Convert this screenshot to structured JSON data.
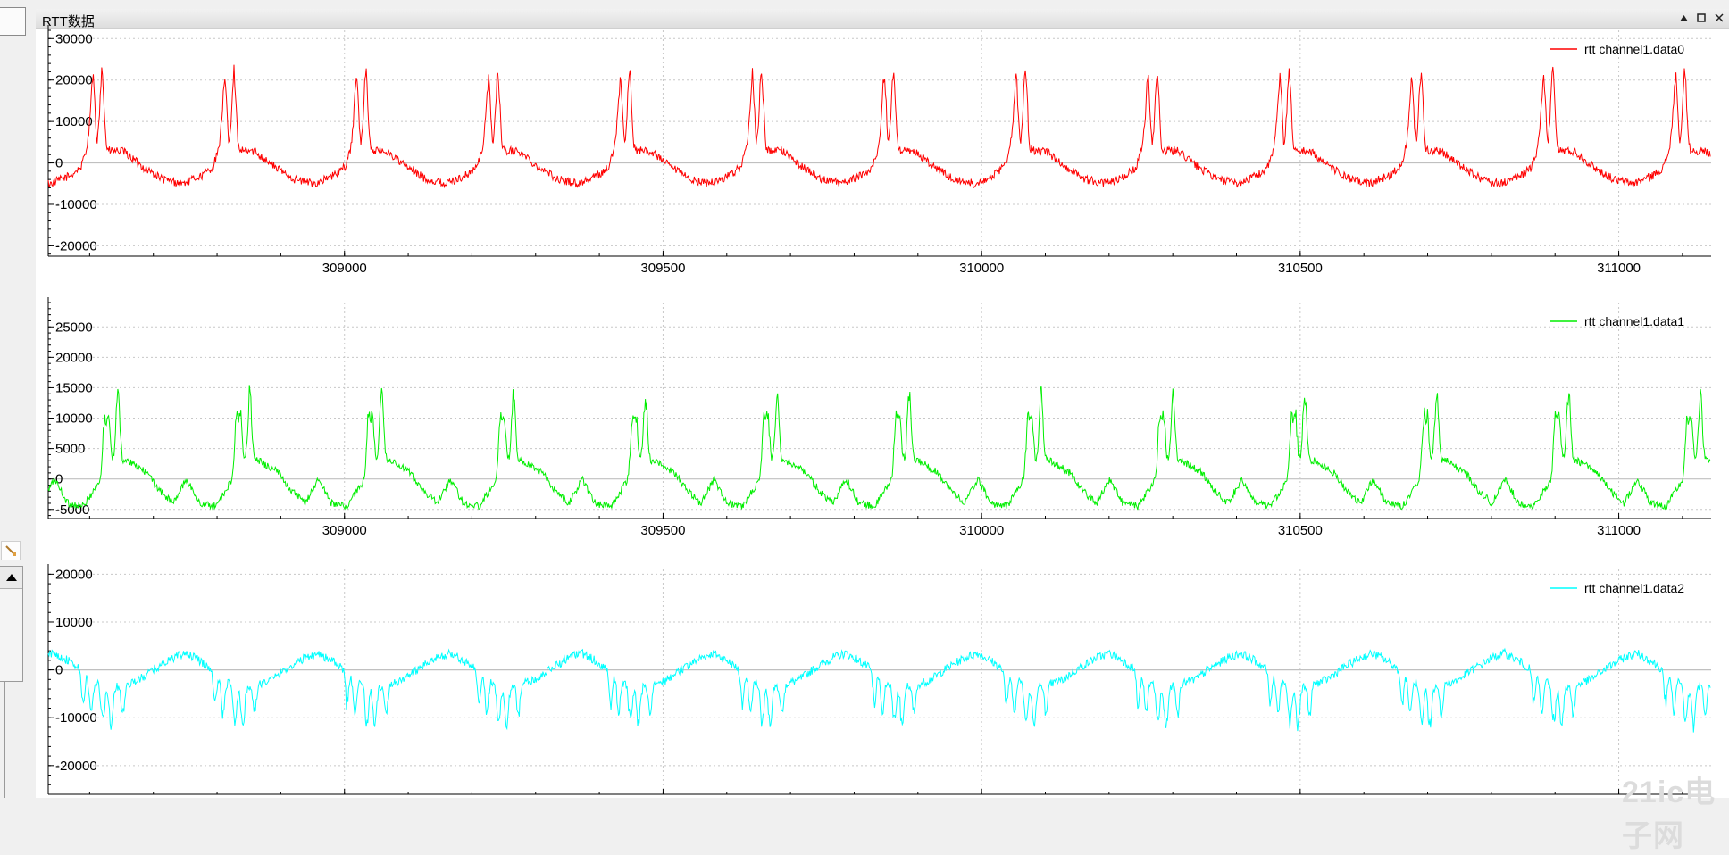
{
  "window": {
    "title": "RTT数据"
  },
  "watermark": "21ic电子网",
  "icons": {
    "restore": "restore-icon",
    "maximize": "maximize-icon",
    "close": "close-icon",
    "brush": "brush-icon",
    "scroll_up": "arrow-up-icon"
  },
  "colors": {
    "ch0": "#ff0000",
    "ch1": "#00ee00",
    "ch2": "#00ffff",
    "grid": "#c8c8c8",
    "zero": "#c0c0c0"
  },
  "chart_data": [
    {
      "type": "line",
      "title": "",
      "legend": "rtt channel1.data0",
      "legend_position": "top-right",
      "xlim": [
        308535,
        311145
      ],
      "ylim": [
        -22500,
        32000
      ],
      "x_ticks": [
        309000,
        309500,
        310000,
        310500,
        311000
      ],
      "x_tick_labels": [
        "309000",
        "309500",
        "310000",
        "310500",
        "311000"
      ],
      "y_ticks": [
        30000,
        20000,
        10000,
        0,
        -10000,
        -20000
      ],
      "y_tick_labels": [
        "30000",
        "20000",
        "10000",
        "0",
        "-10000",
        "-20000"
      ],
      "series": [
        {
          "name": "rtt channel1.data0",
          "period": 207,
          "phase_x": 308570,
          "shape": [
            [
              0,
              -3000
            ],
            [
              0.08,
              -1000
            ],
            [
              0.12,
              3000
            ],
            [
              0.17,
              11500
            ],
            [
              0.2,
              2500
            ],
            [
              0.24,
              12500
            ],
            [
              0.27,
              3000
            ],
            [
              0.4,
              2800
            ],
            [
              0.55,
              -1000
            ],
            [
              0.7,
              -4000
            ],
            [
              0.85,
              -5000
            ],
            [
              1.0,
              -3000
            ]
          ],
          "spikes": [
            {
              "at": 0.17,
              "width": 0.016,
              "height": 9500
            },
            {
              "at": 0.24,
              "width": 0.016,
              "height": 10000
            }
          ],
          "noise": 1000
        }
      ]
    },
    {
      "type": "line",
      "title": "",
      "legend": "rtt channel1.data1",
      "legend_position": "top-right",
      "xlim": [
        308535,
        311145
      ],
      "ylim": [
        -6500,
        29000
      ],
      "x_ticks": [
        309000,
        309500,
        310000,
        310500,
        311000
      ],
      "x_tick_labels": [
        "309000",
        "309500",
        "310000",
        "310500",
        "311000"
      ],
      "y_ticks": [
        25000,
        20000,
        15000,
        10000,
        5000,
        0,
        -5000
      ],
      "y_tick_labels": [
        "25000",
        "20000",
        "15000",
        "10000",
        "5000",
        "0",
        "-5000"
      ],
      "series": [
        {
          "name": "rtt channel1.data1",
          "period": 207,
          "phase_x": 308545,
          "shape": [
            [
              0,
              0
            ],
            [
              0.1,
              -4000
            ],
            [
              0.22,
              -4500
            ],
            [
              0.32,
              -1000
            ],
            [
              0.4,
              1500
            ],
            [
              0.44,
              3000
            ],
            [
              0.55,
              3000
            ],
            [
              0.7,
              1000
            ],
            [
              0.8,
              -2000
            ],
            [
              0.9,
              -4000
            ],
            [
              1.0,
              0
            ]
          ],
          "spikes": [
            {
              "at": 0.38,
              "width": 0.014,
              "height": 9000
            },
            {
              "at": 0.41,
              "width": 0.012,
              "height": 7500
            },
            {
              "at": 0.48,
              "width": 0.014,
              "height": 11000
            }
          ],
          "noise": 600
        }
      ]
    },
    {
      "type": "line",
      "title": "",
      "legend": "rtt channel1.data2",
      "legend_position": "top-right",
      "xlim": [
        308535,
        311145
      ],
      "ylim": [
        -26000,
        21000
      ],
      "x_ticks": [
        309000,
        309500,
        310000,
        310500,
        311000
      ],
      "x_tick_labels": [
        "309000",
        "309500",
        "310000",
        "310500",
        "311000"
      ],
      "y_ticks": [
        20000,
        10000,
        0,
        -10000,
        -20000
      ],
      "y_tick_labels": [
        "20000",
        "10000",
        "0",
        "-10000",
        "-20000"
      ],
      "series": [
        {
          "name": "rtt channel1.data2",
          "period": 207,
          "phase_x": 308565,
          "shape": [
            [
              0,
              2000
            ],
            [
              0.1,
              0
            ],
            [
              0.2,
              -2500
            ],
            [
              0.4,
              -3500
            ],
            [
              0.55,
              -2000
            ],
            [
              0.65,
              0
            ],
            [
              0.8,
              2500
            ],
            [
              0.9,
              3500
            ],
            [
              1.0,
              2000
            ]
          ],
          "spikes": [
            {
              "at": 0.12,
              "width": 0.012,
              "height": -6500
            },
            {
              "at": 0.18,
              "width": 0.012,
              "height": -7000
            },
            {
              "at": 0.27,
              "width": 0.014,
              "height": -8000
            },
            {
              "at": 0.33,
              "width": 0.014,
              "height": -8500
            },
            {
              "at": 0.42,
              "width": 0.012,
              "height": -6000
            }
          ],
          "noise": 900
        }
      ]
    }
  ]
}
